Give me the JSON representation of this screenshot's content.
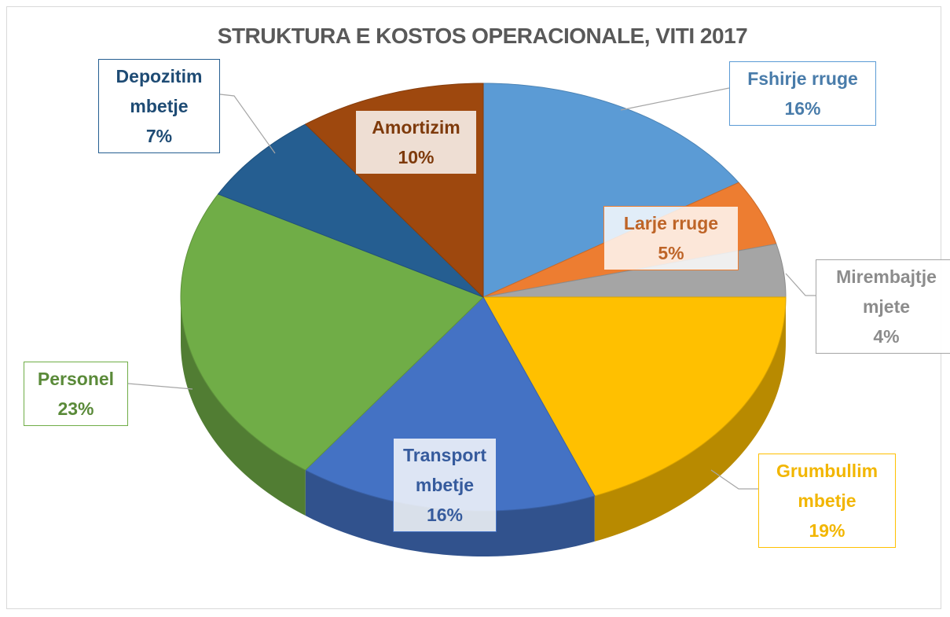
{
  "chart_data": {
    "type": "pie",
    "title": "STRUKTURA E KOSTOS OPERACIONALE, VITI 2017",
    "categories": [
      "Fshirje rruge",
      "Larje rruge",
      "Mirembajtje mjete",
      "Grumbullim mbetje",
      "Transport mbetje",
      "Personel",
      "Depozitim mbetje",
      "Amortizim"
    ],
    "values": [
      16,
      5,
      4,
      19,
      16,
      23,
      7,
      10
    ],
    "value_labels": [
      "16%",
      "5%",
      "4%",
      "19%",
      "16%",
      "23%",
      "7%",
      "10%"
    ],
    "colors": [
      "#5b9bd5",
      "#ed7d31",
      "#a5a5a5",
      "#ffc000",
      "#4472c4",
      "#70ad47",
      "#255e91",
      "#9e480e"
    ]
  }
}
